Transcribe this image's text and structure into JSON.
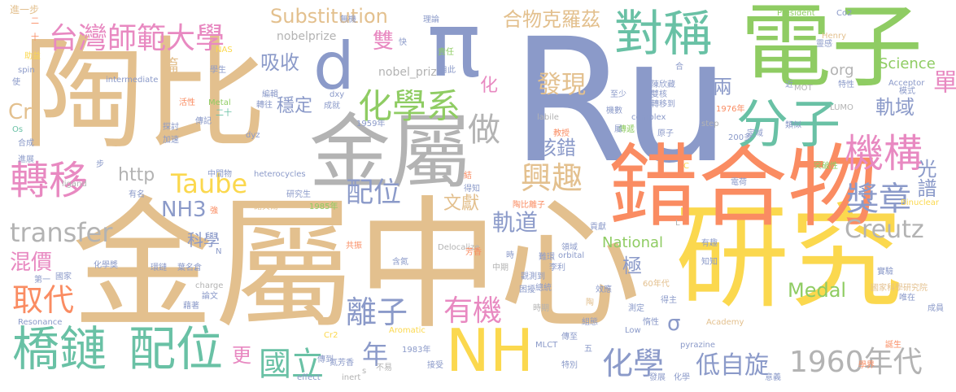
{
  "words": [
    {
      "text": "Ru",
      "color": "#8b9ac9"
    },
    {
      "text": "金屬中心",
      "color": "#e3c08e"
    },
    {
      "text": "研究",
      "color": "#fbd84e"
    },
    {
      "text": "陶比",
      "color": "#e3c08e"
    },
    {
      "text": "電子",
      "color": "#8fcc63"
    },
    {
      "text": "錯合物",
      "color": "#fa8c62"
    },
    {
      "text": "π",
      "color": "#8b9ac9"
    },
    {
      "text": "金屬",
      "color": "#b3b3b3"
    },
    {
      "text": "對稱",
      "color": "#69c1a5"
    },
    {
      "text": "分子",
      "color": "#69c1a5"
    },
    {
      "text": "NH",
      "color": "#fbd84e"
    },
    {
      "text": "橋鏈",
      "color": "#69c1a5"
    },
    {
      "text": "配位",
      "color": "#69c1a5"
    },
    {
      "text": "d",
      "color": "#8b9ac9"
    },
    {
      "text": "轉移",
      "color": "#e889c1"
    },
    {
      "text": "機構",
      "color": "#e889c1"
    },
    {
      "text": "化學系",
      "color": "#8fcc63"
    },
    {
      "text": "台灣師範大學",
      "color": "#e889c1"
    },
    {
      "text": "1960年代",
      "color": "#b3b3b3"
    },
    {
      "text": "化學",
      "color": "#8b9ac9"
    },
    {
      "text": "國立",
      "color": "#69c1a5"
    },
    {
      "text": "獎章",
      "color": "#8b9ac9"
    },
    {
      "text": "興趣",
      "color": "#e3c08e"
    },
    {
      "text": "有機",
      "color": "#e889c1"
    },
    {
      "text": "離子",
      "color": "#8b9ac9"
    },
    {
      "text": "取代",
      "color": "#fa8c62"
    },
    {
      "text": "Taube",
      "color": "#fbd84e"
    },
    {
      "text": "做",
      "color": "#b3b3b3"
    },
    {
      "text": "單",
      "color": "#e889c1"
    },
    {
      "text": "配位",
      "color": "#8b9ac9"
    },
    {
      "text": "合物克羅茲",
      "color": "#e3c08e"
    },
    {
      "text": "Substitution",
      "color": "#e3c08e"
    },
    {
      "text": "transfer",
      "color": "#b3b3b3"
    },
    {
      "text": "Creutz",
      "color": "#b3b3b3"
    },
    {
      "text": "低自旋",
      "color": "#8b9ac9"
    },
    {
      "text": "年",
      "color": "#8b9ac9"
    },
    {
      "text": "發現",
      "color": "#e3c08e"
    },
    {
      "text": "軌道",
      "color": "#8b9ac9"
    },
    {
      "text": "NH3",
      "color": "#8b9ac9"
    },
    {
      "text": "光譜",
      "color": "#8b9ac9"
    },
    {
      "text": "軌域",
      "color": "#8b9ac9"
    },
    {
      "text": "Science",
      "color": "#8fcc63"
    },
    {
      "text": "Medal",
      "color": "#8fcc63"
    },
    {
      "text": "混價",
      "color": "#e889c1"
    },
    {
      "text": "吸收",
      "color": "#8b9ac9"
    },
    {
      "text": "穩定",
      "color": "#8b9ac9"
    },
    {
      "text": "核錯",
      "color": "#8b9ac9"
    },
    {
      "text": "Cr",
      "color": "#e3c08e"
    },
    {
      "text": "雙",
      "color": "#e889c1"
    },
    {
      "text": "更",
      "color": "#e889c1"
    },
    {
      "text": "National",
      "color": "#8fcc63"
    },
    {
      "text": "文獻",
      "color": "#e3c08e"
    },
    {
      "text": "極",
      "color": "#8b9ac9"
    },
    {
      "text": "兩",
      "color": "#8b9ac9"
    },
    {
      "text": "σ",
      "color": "#8b9ac9"
    },
    {
      "text": "科學",
      "color": "#8b9ac9"
    },
    {
      "text": "http",
      "color": "#b3b3b3"
    },
    {
      "text": "org",
      "color": "#b3b3b3"
    },
    {
      "text": "化",
      "color": "#e889c1"
    },
    {
      "text": "篇",
      "color": "#e3c08e"
    },
    {
      "text": "nobelprize",
      "color": "#b3b3b3"
    },
    {
      "text": "nobel_priz",
      "color": "#b3b3b3"
    },
    {
      "text": "進一步",
      "color": "#e3c08e"
    },
    {
      "text": "President",
      "color": "#8fcc63"
    },
    {
      "text": "Co2",
      "color": "#8b9ac9"
    },
    {
      "text": "Henry",
      "color": "#e3c08e"
    },
    {
      "text": "Acceptor",
      "color": "#8b9ac9"
    },
    {
      "text": "intermediate",
      "color": "#8b9ac9"
    },
    {
      "text": "NAS",
      "color": "#fbd84e"
    },
    {
      "text": "學生",
      "color": "#8b9ac9"
    },
    {
      "text": "dxy",
      "color": "#8b9ac9"
    },
    {
      "text": "dyz",
      "color": "#8b9ac9"
    },
    {
      "text": "1959年",
      "color": "#8b9ac9"
    },
    {
      "text": "1976年",
      "color": "#fa8c62"
    },
    {
      "text": "LUMO",
      "color": "#b3b3b3"
    },
    {
      "text": "complex",
      "color": "#8b9ac9"
    },
    {
      "text": "step",
      "color": "#b3b3b3"
    },
    {
      "text": "200多",
      "color": "#8b9ac9"
    },
    {
      "text": "MOT",
      "color": "#b3b3b3"
    },
    {
      "text": "labile",
      "color": "#b3b3b3"
    },
    {
      "text": "Metal",
      "color": "#8fcc63"
    },
    {
      "text": "heterocycles",
      "color": "#8b9ac9"
    },
    {
      "text": "ligand",
      "color": "#b3b3b3"
    },
    {
      "text": "Delocalize",
      "color": "#b3b3b3"
    },
    {
      "text": "orbital",
      "color": "#8b9ac9"
    },
    {
      "text": "Binuclear",
      "color": "#fbd84e"
    },
    {
      "text": "1985年",
      "color": "#8fcc63"
    },
    {
      "text": "1983年",
      "color": "#8b9ac9"
    },
    {
      "text": "charge",
      "color": "#b3b3b3"
    },
    {
      "text": "Resonance",
      "color": "#8b9ac9"
    },
    {
      "text": "Cr2",
      "color": "#fbd84e"
    },
    {
      "text": "Aromatic",
      "color": "#fbd84e"
    },
    {
      "text": "MLCT",
      "color": "#8b9ac9"
    },
    {
      "text": "Low",
      "color": "#8b9ac9"
    },
    {
      "text": "pyrazine",
      "color": "#8b9ac9"
    },
    {
      "text": "Academy",
      "color": "#e3c08e"
    },
    {
      "text": "inert",
      "color": "#b3b3b3"
    },
    {
      "text": "effect",
      "color": "#8b9ac9"
    },
    {
      "text": "國家科學研究院",
      "color": "#e3c08e"
    },
    {
      "text": "60年代",
      "color": "#e3c08e"
    },
    {
      "text": "Os",
      "color": "#69c1a5"
    },
    {
      "text": "spin",
      "color": "#8b9ac9"
    },
    {
      "text": "諾貝爾",
      "color": "#e3c08e"
    },
    {
      "text": "研究生",
      "color": "#8b9ac9"
    },
    {
      "text": "化學獎",
      "color": "#8b9ac9"
    },
    {
      "text": "陶比離子",
      "color": "#fa8c62"
    },
    {
      "text": "氮芳香",
      "color": "#8b9ac9"
    },
    {
      "text": "無機",
      "color": "#8b9ac9"
    },
    {
      "text": "理論",
      "color": "#8b9ac9"
    },
    {
      "text": "責任",
      "color": "#8fcc63"
    },
    {
      "text": "自此",
      "color": "#8b9ac9"
    },
    {
      "text": "成就",
      "color": "#8b9ac9"
    },
    {
      "text": "二十",
      "color": "#69c1a5"
    },
    {
      "text": "傳記",
      "color": "#8b9ac9"
    },
    {
      "text": "轉往",
      "color": "#8b9ac9"
    },
    {
      "text": "活性",
      "color": "#fa8c62"
    },
    {
      "text": "編輯",
      "color": "#8b9ac9"
    },
    {
      "text": "中間物",
      "color": "#8b9ac9"
    },
    {
      "text": "接受",
      "color": "#8b9ac9"
    },
    {
      "text": "傳遞",
      "color": "#8fcc63"
    },
    {
      "text": "類似",
      "color": "#8b9ac9"
    },
    {
      "text": "定域",
      "color": "#8b9ac9"
    },
    {
      "text": "突破性",
      "color": "#8fcc63"
    },
    {
      "text": "電荷",
      "color": "#8b9ac9"
    },
    {
      "text": "陳欣藏",
      "color": "#8b9ac9"
    },
    {
      "text": "雙核",
      "color": "#8b9ac9"
    },
    {
      "text": "轉移到",
      "color": "#8b9ac9"
    },
    {
      "text": "機數",
      "color": "#8b9ac9"
    },
    {
      "text": "原子",
      "color": "#8b9ac9"
    },
    {
      "text": "教授",
      "color": "#fa8c62"
    },
    {
      "text": "至少",
      "color": "#8b9ac9"
    },
    {
      "text": "特性",
      "color": "#8b9ac9"
    },
    {
      "text": "模式",
      "color": "#8b9ac9"
    },
    {
      "text": "靈感",
      "color": "#8b9ac9"
    },
    {
      "text": "學界",
      "color": "#fa8c62"
    },
    {
      "text": "誕生",
      "color": "#fa8c62"
    },
    {
      "text": "成員",
      "color": "#8b9ac9"
    },
    {
      "text": "唯在",
      "color": "#8b9ac9"
    },
    {
      "text": "實驗",
      "color": "#8b9ac9"
    },
    {
      "text": "知知",
      "color": "#8b9ac9"
    },
    {
      "text": "意義",
      "color": "#8b9ac9"
    },
    {
      "text": "發展",
      "color": "#8b9ac9"
    },
    {
      "text": "時期",
      "color": "#b3b3b3"
    },
    {
      "text": "總統",
      "color": "#8b9ac9"
    },
    {
      "text": "觀測到",
      "color": "#8b9ac9"
    },
    {
      "text": "合成",
      "color": "#8b9ac9"
    },
    {
      "text": "進展",
      "color": "#8b9ac9"
    },
    {
      "text": "探討",
      "color": "#8b9ac9"
    },
    {
      "text": "加速",
      "color": "#8b9ac9"
    },
    {
      "text": "助益",
      "color": "#fbd84e"
    },
    {
      "text": "使",
      "color": "#8b9ac9"
    },
    {
      "text": "國家",
      "color": "#8b9ac9"
    },
    {
      "text": "第一",
      "color": "#8b9ac9"
    },
    {
      "text": "環鏈",
      "color": "#8b9ac9"
    },
    {
      "text": "葉名倉",
      "color": "#8b9ac9"
    },
    {
      "text": "藉著",
      "color": "#8b9ac9"
    },
    {
      "text": "論文",
      "color": "#8b9ac9"
    },
    {
      "text": "含氮",
      "color": "#8b9ac9"
    },
    {
      "text": "芳香",
      "color": "#fa8c62"
    },
    {
      "text": "難環",
      "color": "#8b9ac9"
    },
    {
      "text": "困擾",
      "color": "#8b9ac9"
    },
    {
      "text": "效應",
      "color": "#8b9ac9"
    },
    {
      "text": "測定",
      "color": "#8b9ac9"
    },
    {
      "text": "得主",
      "color": "#8b9ac9"
    },
    {
      "text": "傳至",
      "color": "#8b9ac9"
    },
    {
      "text": "特別",
      "color": "#8b9ac9"
    },
    {
      "text": "化學",
      "color": "#8b9ac9"
    },
    {
      "text": "組態",
      "color": "#8b9ac9"
    },
    {
      "text": "惰性",
      "color": "#8b9ac9"
    },
    {
      "text": "不易",
      "color": "#b3b3b3"
    },
    {
      "text": "傳到",
      "color": "#8b9ac9"
    },
    {
      "text": "中期",
      "color": "#b3b3b3"
    },
    {
      "text": "李利",
      "color": "#8b9ac9"
    },
    {
      "text": "貢獻",
      "color": "#8b9ac9"
    },
    {
      "text": "有趣",
      "color": "#8b9ac9"
    },
    {
      "text": "共振",
      "color": "#fa8c62"
    },
    {
      "text": "強",
      "color": "#fa8c62"
    },
    {
      "text": "有名",
      "color": "#8b9ac9"
    },
    {
      "text": "得知",
      "color": "#8b9ac9"
    },
    {
      "text": "領域",
      "color": "#8b9ac9"
    },
    {
      "text": "結",
      "color": "#fa8c62"
    },
    {
      "text": "快",
      "color": "#8b9ac9"
    },
    {
      "text": "步",
      "color": "#8b9ac9"
    },
    {
      "text": "二",
      "color": "#fa8c62"
    },
    {
      "text": "十",
      "color": "#fa8c62"
    },
    {
      "text": "屬",
      "color": "#8b9ac9"
    },
    {
      "text": "合",
      "color": "#8b9ac9"
    },
    {
      "text": "近",
      "color": "#8b9ac9"
    },
    {
      "text": "C",
      "color": "#fbd84e"
    },
    {
      "text": "L",
      "color": "#b3b3b3"
    },
    {
      "text": "N",
      "color": "#8b9ac9"
    },
    {
      "text": "五",
      "color": "#8b9ac9"
    },
    {
      "text": "時",
      "color": "#8b9ac9"
    },
    {
      "text": "陶",
      "color": "#e3c08e"
    },
    {
      "text": "s",
      "color": "#b3b3b3"
    }
  ]
}
